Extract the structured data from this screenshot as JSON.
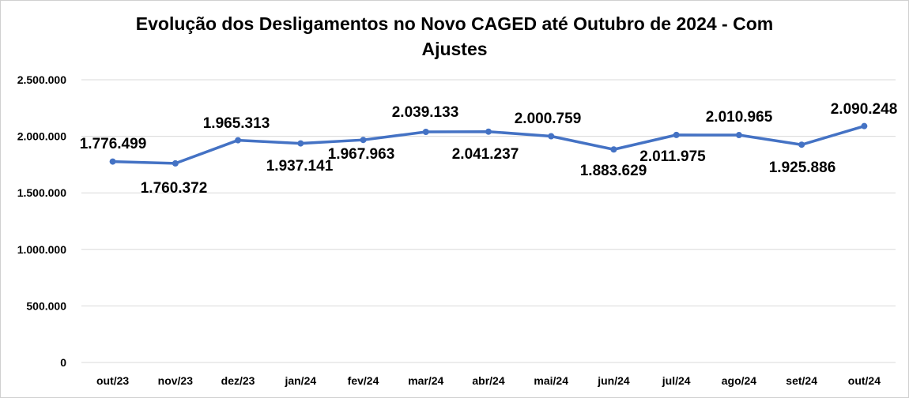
{
  "chart_data": {
    "type": "line",
    "title": "Evolução dos Desligamentos no Novo CAGED até Outubro de 2024 - Com Ajustes",
    "xlabel": "",
    "ylabel": "",
    "categories": [
      "out/23",
      "nov/23",
      "dez/23",
      "jan/24",
      "fev/24",
      "mar/24",
      "abr/24",
      "mai/24",
      "jun/24",
      "jul/24",
      "ago/24",
      "set/24",
      "out/24"
    ],
    "values": [
      1776499,
      1760372,
      1965313,
      1937141,
      1967963,
      2039133,
      2041237,
      2000759,
      1883629,
      2011975,
      2010965,
      1925886,
      2090248
    ],
    "data_labels": [
      "1.776.499",
      "1.760.372",
      "1.965.313",
      "1.937.141",
      "1.967.963",
      "2.039.133",
      "2.041.237",
      "2.000.759",
      "1.883.629",
      "2.011.975",
      "2.010.965",
      "1.925.886",
      "2.090.248"
    ],
    "ylim": [
      0,
      2500000
    ],
    "yticks": [
      0,
      500000,
      1000000,
      1500000,
      2000000,
      2500000
    ],
    "ytick_labels": [
      "0",
      "500.000",
      "1.000.000",
      "1.500.000",
      "2.000.000",
      "2.500.000"
    ],
    "grid": true,
    "legend": "none",
    "line_color": "#4472C4"
  }
}
